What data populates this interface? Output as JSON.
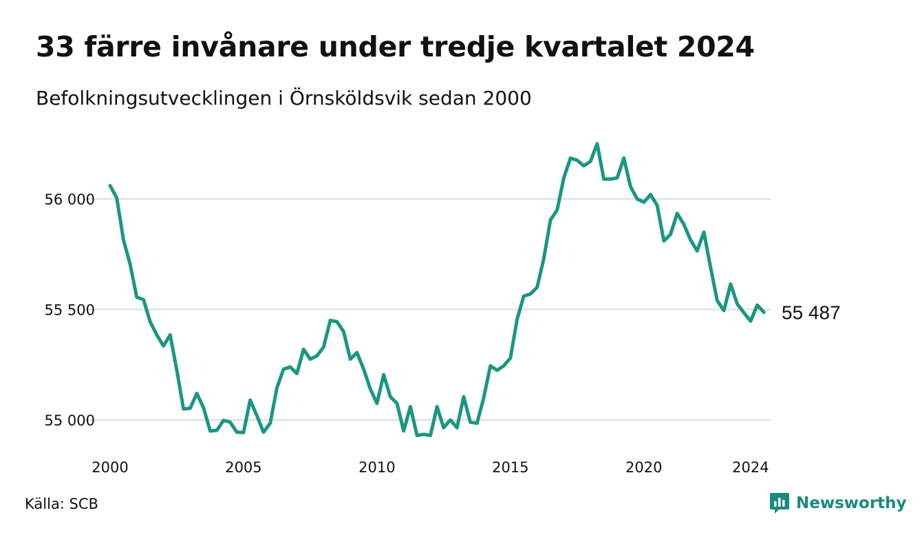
{
  "title": "33 färre invånare under tredje kvartalet 2024",
  "subtitle": "Befolkningsutvecklingen i Örnsköldsvik sedan 2000",
  "source": "Källa: SCB",
  "brand": {
    "name": "Newsworthy"
  },
  "colors": {
    "line": "#1a9683",
    "grid": "#dcdcdc",
    "text": "#111111",
    "brand": "#1a8a7c",
    "background": "#ffffff"
  },
  "chart_data": {
    "type": "line",
    "title": "33 färre invånare under tredje kvartalet 2024",
    "subtitle": "Befolkningsutvecklingen i Örnsköldsvik sedan 2000",
    "xlabel": "",
    "ylabel": "",
    "grid": true,
    "legend": "none",
    "xlim": [
      2000,
      2024.75
    ],
    "ylim": [
      54880,
      56280
    ],
    "xticks": [
      2000,
      2005,
      2010,
      2015,
      2020,
      2024
    ],
    "xtick_labels": [
      "2000",
      "2005",
      "2010",
      "2015",
      "2020",
      "2024"
    ],
    "yticks": [
      55000,
      55500,
      56000
    ],
    "ytick_labels": [
      "55 000",
      "55 500",
      "56 000"
    ],
    "last_value_label": "55 487",
    "x": [
      2000.0,
      2000.25,
      2000.5,
      2000.75,
      2001.0,
      2001.25,
      2001.5,
      2001.75,
      2002.0,
      2002.25,
      2002.5,
      2002.75,
      2003.0,
      2003.25,
      2003.5,
      2003.75,
      2004.0,
      2004.25,
      2004.5,
      2004.75,
      2005.0,
      2005.25,
      2005.5,
      2005.75,
      2006.0,
      2006.25,
      2006.5,
      2006.75,
      2007.0,
      2007.25,
      2007.5,
      2007.75,
      2008.0,
      2008.25,
      2008.5,
      2008.75,
      2009.0,
      2009.25,
      2009.5,
      2009.75,
      2010.0,
      2010.25,
      2010.5,
      2010.75,
      2011.0,
      2011.25,
      2011.5,
      2011.75,
      2012.0,
      2012.25,
      2012.5,
      2012.75,
      2013.0,
      2013.25,
      2013.5,
      2013.75,
      2014.0,
      2014.25,
      2014.5,
      2014.75,
      2015.0,
      2015.25,
      2015.5,
      2015.75,
      2016.0,
      2016.25,
      2016.5,
      2016.75,
      2017.0,
      2017.25,
      2017.5,
      2017.75,
      2018.0,
      2018.25,
      2018.5,
      2018.75,
      2019.0,
      2019.25,
      2019.5,
      2019.75,
      2020.0,
      2020.25,
      2020.5,
      2020.75,
      2021.0,
      2021.25,
      2021.5,
      2021.75,
      2022.0,
      2022.25,
      2022.5,
      2022.75,
      2023.0,
      2023.25,
      2023.5,
      2023.75,
      2024.0,
      2024.25,
      2024.5
    ],
    "series": [
      {
        "values": [
          56060,
          56005,
          55815,
          55705,
          55555,
          55545,
          55445,
          55385,
          55335,
          55385,
          55225,
          55050,
          55053,
          55120,
          55055,
          54950,
          54953,
          54998,
          54990,
          54945,
          54943,
          55090,
          55020,
          54945,
          54985,
          55145,
          55230,
          55240,
          55210,
          55320,
          55275,
          55290,
          55330,
          55450,
          55445,
          55400,
          55275,
          55305,
          55230,
          55140,
          55075,
          55205,
          55105,
          55075,
          54950,
          55060,
          54930,
          54935,
          54930,
          55060,
          54965,
          55000,
          54965,
          55105,
          54990,
          54985,
          55100,
          55245,
          55225,
          55245,
          55280,
          55455,
          55560,
          55570,
          55600,
          55730,
          55905,
          55950,
          56095,
          56185,
          56175,
          56150,
          56170,
          56250,
          56090,
          56090,
          56095,
          56185,
          56055,
          56000,
          55985,
          56020,
          55970,
          55810,
          55840,
          55935,
          55885,
          55815,
          55765,
          55850,
          55690,
          55540,
          55495,
          55615,
          55525,
          55485,
          55447,
          55520,
          55487
        ]
      }
    ]
  }
}
